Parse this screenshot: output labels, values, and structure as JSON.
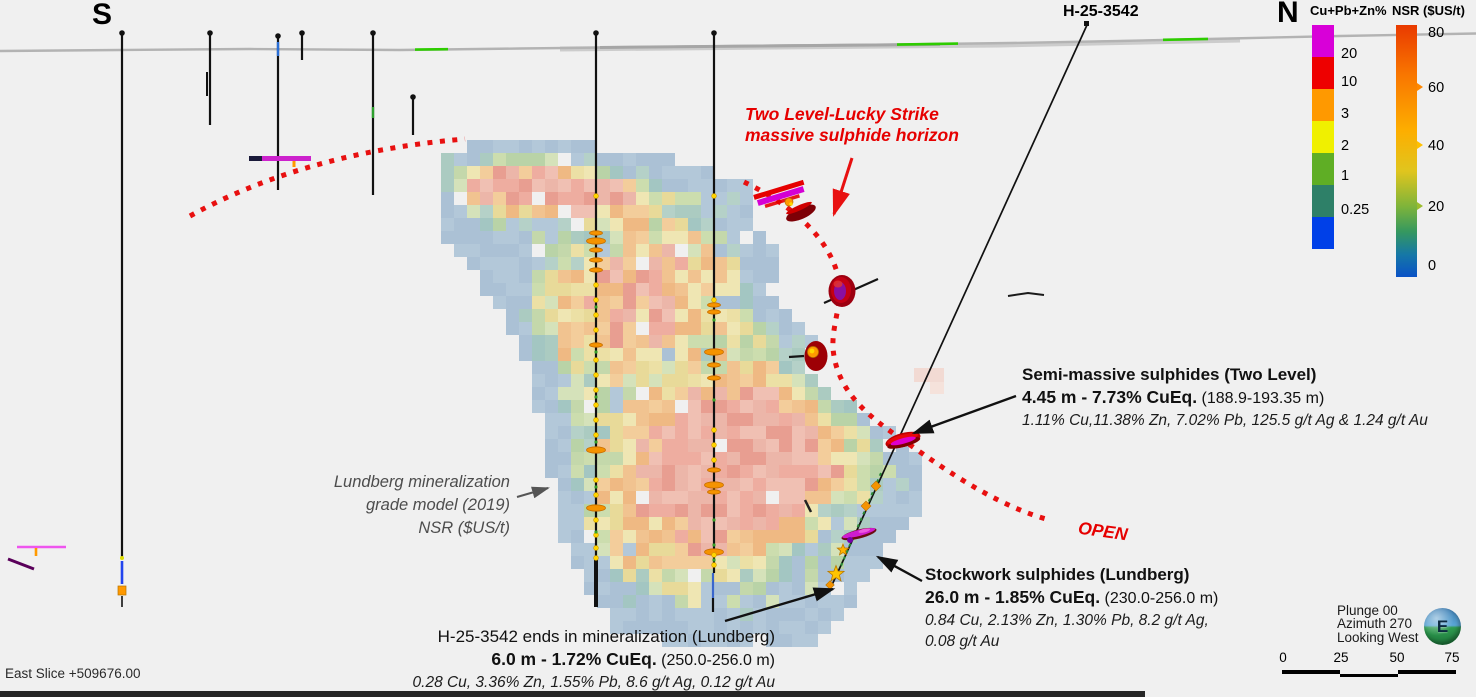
{
  "title_labels": {
    "south": "S",
    "north": "N",
    "hole_id": "H-25-3542"
  },
  "legend_cupbzn": {
    "title": "Cu+Pb+Zn%",
    "tick_labels": [
      "20",
      "10",
      "3",
      "2",
      "1",
      "0.25"
    ],
    "block_colors": [
      "#d800d8",
      "#ee0000",
      "#ff9900",
      "#f0f000",
      "#5fae25",
      "#2e8068",
      "#0040e8"
    ]
  },
  "legend_nsr": {
    "title": "NSR ($US/t)",
    "tick_labels": [
      "80",
      "60",
      "40",
      "20",
      "0"
    ],
    "gradient_stops": [
      "#e93a00 0%",
      "#f97700 20%",
      "#fdae00 42%",
      "#e0c51e 58%",
      "#7eb43a 72%",
      "#35985f 82%",
      "#1678a6 91%",
      "#0a52c6 100%"
    ]
  },
  "annotation_horizon": {
    "line1": "Two Level-Lucky Strike",
    "line2": "massive sulphide horizon"
  },
  "annotation_semi_massive": {
    "title": "Semi-massive sulphides (Two Level)",
    "interval_bold": "4.45 m - 7.73% CuEq.",
    "interval_range": "(188.9-193.35 m)",
    "assays": "1.11% Cu,11.38% Zn, 7.02% Pb, 125.5 g/t Ag & 1.24 g/t Au"
  },
  "annotation_stockwork": {
    "title": "Stockwork sulphides (Lundberg)",
    "interval_bold": "26.0 m - 1.85% CuEq.",
    "interval_range": "(230.0-256.0 m)",
    "assays_line1": "0.84 Cu, 2.13% Zn, 1.30% Pb, 8.2 g/t Ag,",
    "assays_line2": "0.08 g/t Au"
  },
  "annotation_eoh": {
    "title": "H-25-3542 ends in mineralization (Lundberg)",
    "interval_bold": "6.0 m - 1.72% CuEq.",
    "interval_range": "(250.0-256.0 m)",
    "assays": "0.28 Cu, 3.36% Zn, 1.55% Pb, 8.6 g/t Ag, 0.12 g/t Au"
  },
  "annotation_model": {
    "line1": "Lundberg mineralization",
    "line2": "grade model (2019)",
    "line3": "NSR ($US/t)"
  },
  "annotation_open": {
    "text": "OPEN"
  },
  "status_bar": {
    "slice_label": "East Slice +509676.00"
  },
  "view_widget": {
    "plunge": "Plunge 00",
    "azimuth": "Azimuth 270",
    "looking": "Looking West",
    "compass_letter": "E"
  },
  "scale_bar": {
    "tick_labels": [
      "0",
      "25",
      "50",
      "75"
    ]
  },
  "accent_colors": {
    "annotation_red": "#e60000",
    "horizon_dash_red": "#e81010",
    "model_gray": "#4d4d4d"
  }
}
